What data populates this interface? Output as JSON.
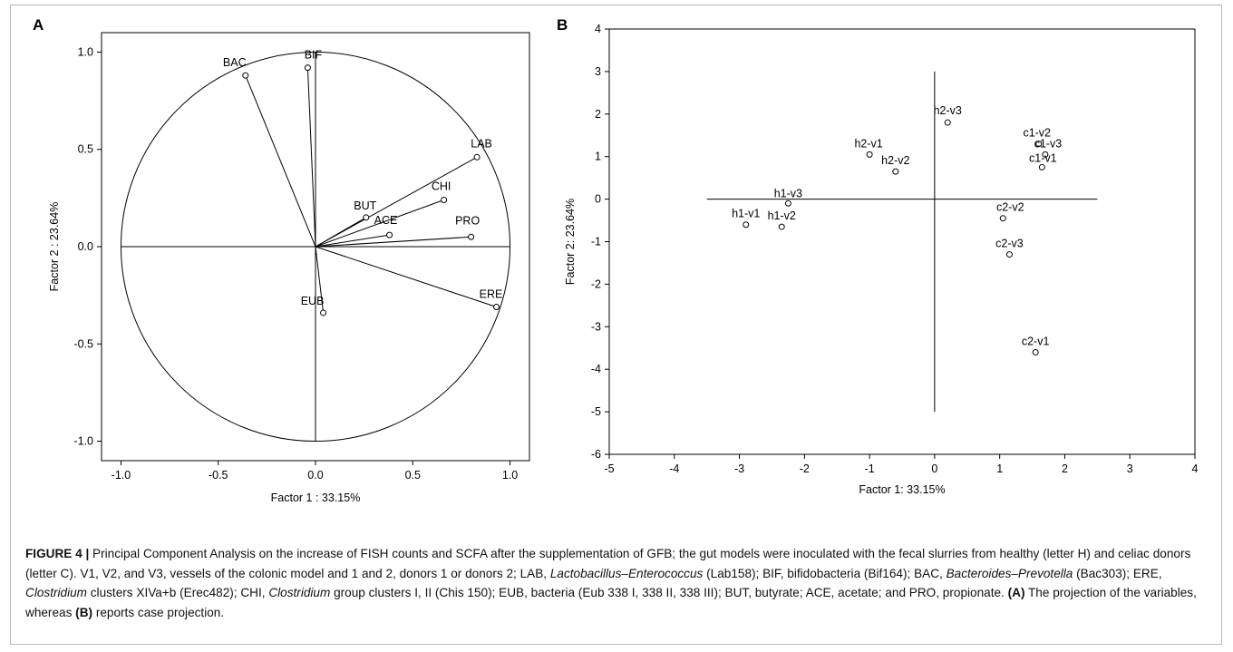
{
  "figure": {
    "panel_a_letter": "A",
    "panel_b_letter": "B"
  },
  "caption": {
    "label": "FIGURE 4 |",
    "s1": " Principal Component Analysis on the increase of FISH counts and SCFA after the supplementation of GFB; the gut models were inoculated with the fecal slurries from healthy (letter H) and celiac donors (letter C). V1, V2, and V3, vessels of the colonic model and 1 and 2, donors 1 or donors 2; LAB, ",
    "lab_name": "Lactobacillus–Enterococcus",
    "s2": " (Lab158); BIF, bifidobacteria (Bif164); BAC, ",
    "bac_name": "Bacteroides–Prevotella",
    "s3": " (Bac303); ERE, ",
    "ere_name": "Clostridium",
    "s4": " clusters XIVa+b (Erec482); CHI, ",
    "chi_name": "Clostridium",
    "s5": " group clusters I, II (Chis 150); EUB, bacteria (Eub 338 I, 338 II, 338 III); BUT, butyrate; ACE, acetate; and PRO, propionate. ",
    "a_ref": "(A)",
    "s6": " The projection of the variables, whereas ",
    "b_ref": "(B)",
    "s7": " reports case projection."
  },
  "chart_data": [
    {
      "type": "scatter",
      "panel": "A",
      "xlabel": "Factor 1 : 33.15%",
      "ylabel": "Factor 2 : 23.64%",
      "xlim": [
        -1.1,
        1.1
      ],
      "ylim": [
        -1.1,
        1.1
      ],
      "xticks": [
        "-1.0",
        "-0.5",
        "0.0",
        "0.5",
        "1.0"
      ],
      "yticks": [
        "1.0",
        "0.5",
        "0.0",
        "-0.5",
        "-1.0"
      ],
      "unit_circle": true,
      "vectors_from_origin": true,
      "points": [
        {
          "label": "BAC",
          "x": -0.36,
          "y": 0.88
        },
        {
          "label": "BIF",
          "x": -0.04,
          "y": 0.92
        },
        {
          "label": "LAB",
          "x": 0.83,
          "y": 0.46
        },
        {
          "label": "CHI",
          "x": 0.66,
          "y": 0.24
        },
        {
          "label": "BUT",
          "x": 0.26,
          "y": 0.15
        },
        {
          "label": "ACE",
          "x": 0.38,
          "y": 0.06
        },
        {
          "label": "PRO",
          "x": 0.8,
          "y": 0.05
        },
        {
          "label": "EUB",
          "x": 0.04,
          "y": -0.34
        },
        {
          "label": "ERE",
          "x": 0.93,
          "y": -0.31
        }
      ]
    },
    {
      "type": "scatter",
      "panel": "B",
      "xlabel": "Factor 1: 33.15%",
      "ylabel": "Factor 2: 23.64%",
      "xlim": [
        -5,
        4
      ],
      "ylim": [
        -6,
        4
      ],
      "xticks": [
        "-5",
        "-4",
        "-3",
        "-2",
        "-1",
        "0",
        "1",
        "2",
        "3",
        "4"
      ],
      "yticks": [
        "4",
        "3",
        "2",
        "1",
        "0",
        "-1",
        "-2",
        "-3",
        "-4",
        "-5",
        "-6"
      ],
      "points": [
        {
          "label": "h2-v3",
          "x": 0.2,
          "y": 1.8
        },
        {
          "label": "h2-v1",
          "x": -1.0,
          "y": 1.05
        },
        {
          "label": "h2-v2",
          "x": -0.6,
          "y": 0.65
        },
        {
          "label": "c1-v2",
          "x": 1.6,
          "y": 1.3
        },
        {
          "label": "c1-v3",
          "x": 1.7,
          "y": 1.05
        },
        {
          "label": "c1-v1",
          "x": 1.65,
          "y": 0.75
        },
        {
          "label": "h1-v3",
          "x": -2.25,
          "y": -0.1
        },
        {
          "label": "h1-v1",
          "x": -2.9,
          "y": -0.6
        },
        {
          "label": "h1-v2",
          "x": -2.35,
          "y": -0.65
        },
        {
          "label": "c2-v2",
          "x": 1.05,
          "y": -0.45
        },
        {
          "label": "c2-v3",
          "x": 1.15,
          "y": -1.3
        },
        {
          "label": "c2-v1",
          "x": 1.55,
          "y": -3.6
        }
      ]
    }
  ]
}
